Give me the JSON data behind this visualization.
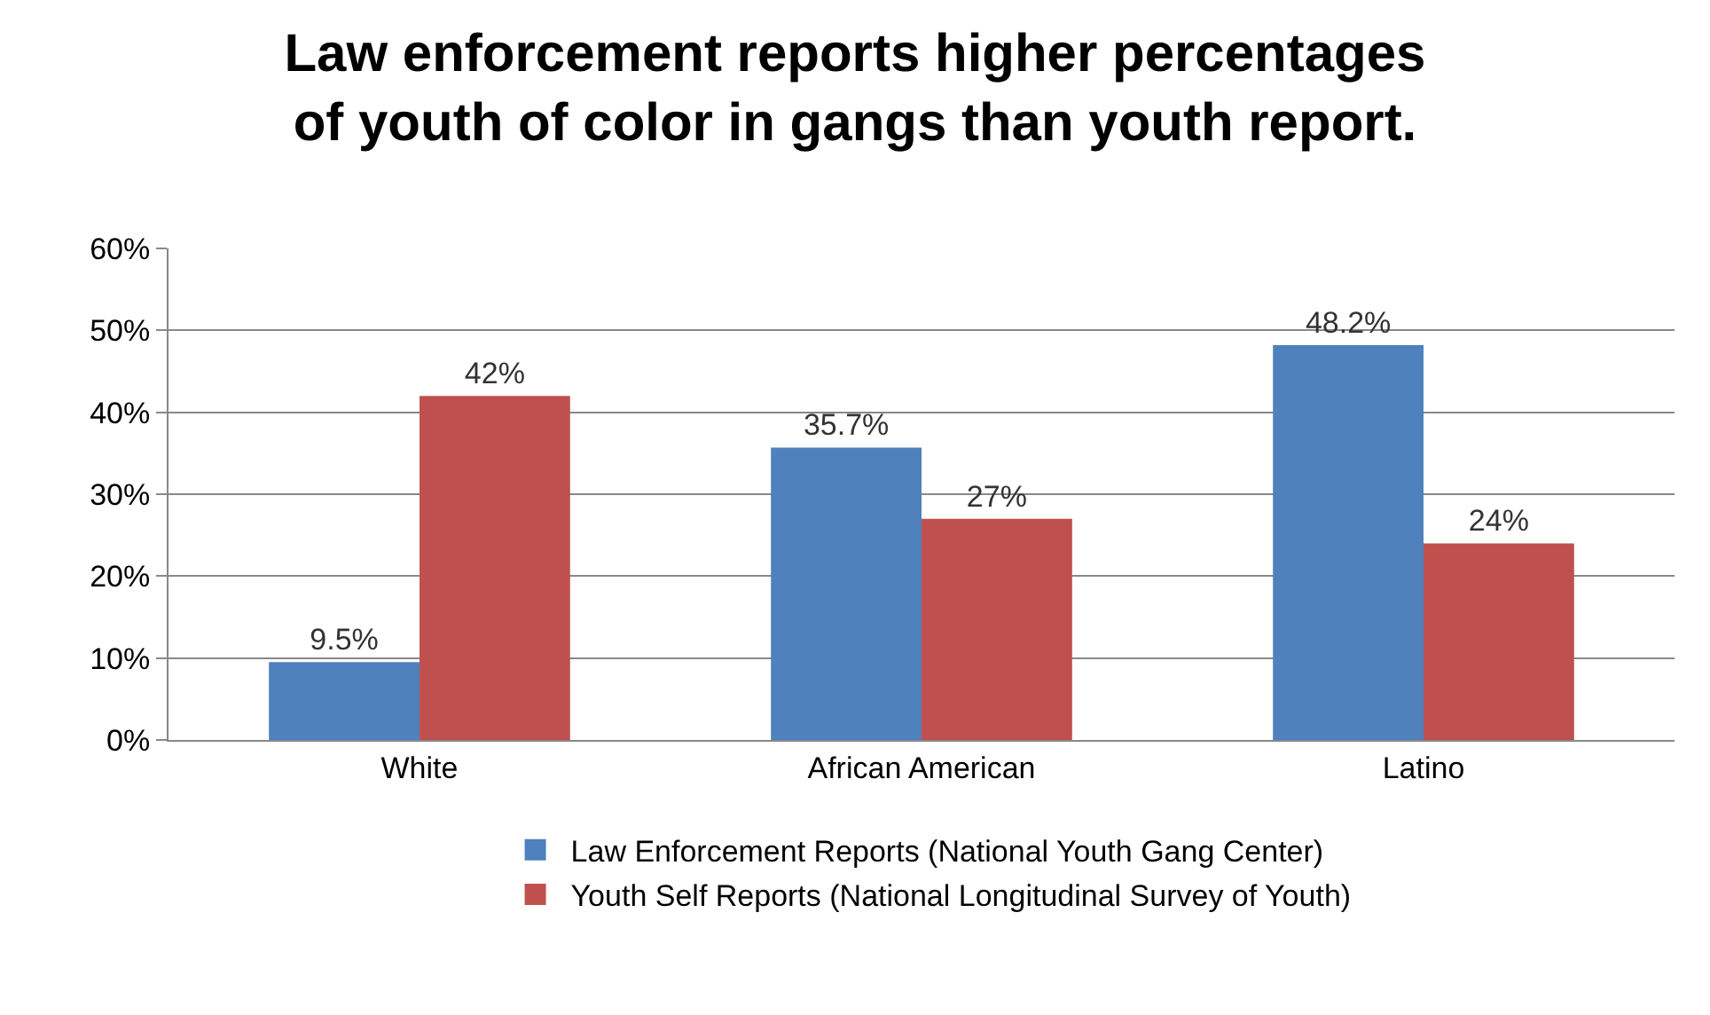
{
  "chart_data": {
    "type": "bar",
    "title": "Law enforcement reports higher percentages\nof youth of color in gangs than youth report.",
    "categories": [
      "White",
      "African American",
      "Latino"
    ],
    "series": [
      {
        "name": "Law Enforcement Reports (National Youth Gang Center)",
        "color": "#4f81bd",
        "values": [
          9.5,
          35.7,
          48.2
        ],
        "value_labels": [
          "9.5%",
          "35.7%",
          "48.2%"
        ]
      },
      {
        "name": "Youth Self Reports (National Longitudinal Survey of Youth)",
        "color": "#c0504d",
        "values": [
          42,
          27,
          24
        ],
        "value_labels": [
          "42%",
          "27%",
          "24%"
        ]
      }
    ],
    "ylim": [
      0,
      60
    ],
    "yticks": [
      {
        "value": 0,
        "label": "0%"
      },
      {
        "value": 10,
        "label": "10%"
      },
      {
        "value": 20,
        "label": "20%"
      },
      {
        "value": 30,
        "label": "30%"
      },
      {
        "value": 40,
        "label": "40%"
      },
      {
        "value": 50,
        "label": "50%"
      },
      {
        "value": 60,
        "label": "60%"
      }
    ],
    "grid": "y",
    "legend": "bottom"
  }
}
